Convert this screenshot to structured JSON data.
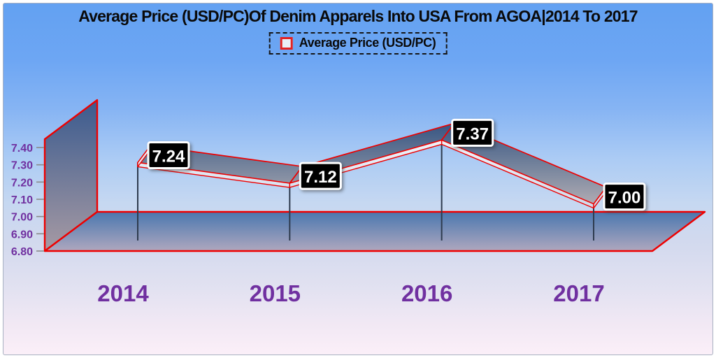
{
  "chart_data": {
    "type": "line",
    "style": "3d-ribbon",
    "title": "Average Price (USD/PC)Of Denim Apparels Into USA From AGOA|2014 To 2017",
    "legend": {
      "label": "Average Price (USD/PC)",
      "position": "top",
      "border": "dashed"
    },
    "categories": [
      "2014",
      "2015",
      "2016",
      "2017"
    ],
    "series": [
      {
        "name": "Average Price (USD/PC)",
        "values": [
          7.24,
          7.12,
          7.37,
          7.0
        ],
        "value_labels": [
          "7.24",
          "7.12",
          "7.37",
          "7.00"
        ]
      }
    ],
    "xlabel": "",
    "ylabel": "",
    "ylim": [
      6.8,
      7.4
    ],
    "ytick_step": 0.1,
    "yticks": [
      "7.40",
      "7.30",
      "7.20",
      "7.10",
      "7.00",
      "6.90",
      "6.80"
    ],
    "grid": false,
    "value_labels_shown": true
  },
  "colors": {
    "edge_red": "#ee0000",
    "axis_text_purple": "#7030a0",
    "title_text": "#0a0a0a",
    "value_label_bg": "#050505",
    "value_label_text": "#ffffff",
    "value_label_border": "#ffffff",
    "drop_line": "#2e3b4e",
    "tick_mark": "#8a8a8a",
    "legend_marker_red": "#e32222",
    "background_top_blue": "#63a1f2",
    "background_bottom_pink": "#fbeff8",
    "surface_dark_blue": "#2e4e7e",
    "surface_pale_gray": "#c4b8ba"
  }
}
